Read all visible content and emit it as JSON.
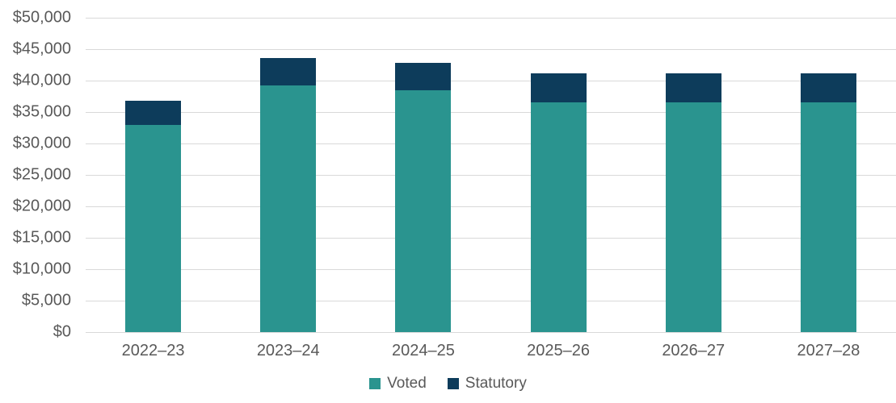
{
  "chart_data": {
    "type": "bar",
    "stacked": true,
    "title": "",
    "xlabel": "",
    "ylabel": "",
    "categories": [
      "2022–23",
      "2023–24",
      "2024–25",
      "2025–26",
      "2026–27",
      "2027–28"
    ],
    "series": [
      {
        "name": "Voted",
        "color": "#2a948f",
        "values": [
          32900,
          39200,
          38500,
          36500,
          36500,
          36500
        ]
      },
      {
        "name": "Statutory",
        "color": "#0d3c5b",
        "values": [
          3900,
          4400,
          4350,
          4700,
          4700,
          4700
        ]
      }
    ],
    "totals": [
      36800,
      43600,
      42850,
      41200,
      41200,
      41200
    ],
    "ylim": [
      0,
      50000
    ],
    "ytick_step": 5000,
    "ytick_labels": [
      "$0",
      "$5,000",
      "$10,000",
      "$15,000",
      "$20,000",
      "$25,000",
      "$30,000",
      "$35,000",
      "$40,000",
      "$45,000",
      "$50,000"
    ],
    "grid": true,
    "legend_position": "bottom"
  },
  "style_colors": {
    "axis_text": "#595959",
    "gridline": "#d9d9d9",
    "background": "#ffffff"
  }
}
